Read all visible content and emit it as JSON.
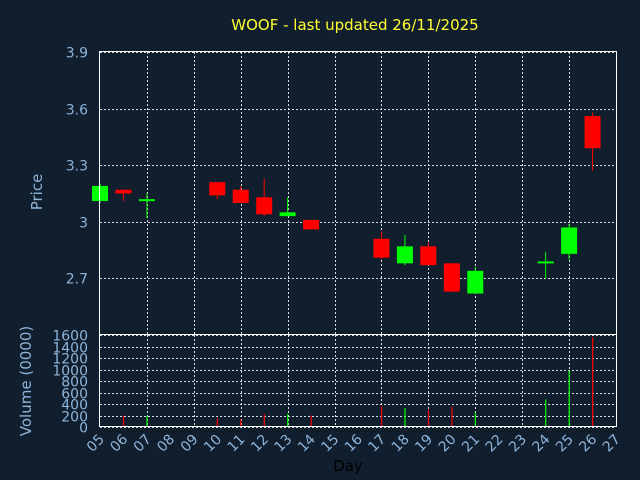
{
  "chart_data": {
    "type": "candlestick",
    "title": "WOOF - last updated 26/11/2025",
    "xlabel": "Day",
    "ylabel_price": "Price",
    "ylabel_volume": "Volume (0000)",
    "x_ticks": [
      "05",
      "06",
      "07",
      "08",
      "09",
      "10",
      "11",
      "12",
      "13",
      "14",
      "15",
      "16",
      "17",
      "18",
      "19",
      "20",
      "21",
      "22",
      "23",
      "24",
      "25",
      "26",
      "27"
    ],
    "price_ylim": [
      2.4,
      3.9
    ],
    "price_ticks": [
      "3.9",
      "3.6",
      "3.3",
      "3",
      "2.7"
    ],
    "volume_ylim": [
      0,
      1600
    ],
    "volume_ticks": [
      "1600",
      "1400",
      "1200",
      "1000",
      "800",
      "600",
      "400",
      "200",
      "0"
    ],
    "colors": {
      "up": "#00ff00",
      "down": "#ff0000",
      "background": "#111e2e",
      "grid": "#ffffff"
    },
    "candles": [
      {
        "day": "05",
        "open": 3.11,
        "high": 3.2,
        "low": 3.1,
        "close": 3.19,
        "volume": 0
      },
      {
        "day": "06",
        "open": 3.17,
        "high": 3.17,
        "low": 3.11,
        "close": 3.15,
        "volume": 200
      },
      {
        "day": "07",
        "open": 3.11,
        "high": 3.15,
        "low": 3.02,
        "close": 3.12,
        "volume": 200
      },
      {
        "day": "10",
        "open": 3.21,
        "high": 3.21,
        "low": 3.12,
        "close": 3.14,
        "volume": 150
      },
      {
        "day": "11",
        "open": 3.17,
        "high": 3.19,
        "low": 3.1,
        "close": 3.1,
        "volume": 130
      },
      {
        "day": "12",
        "open": 3.13,
        "high": 3.23,
        "low": 3.03,
        "close": 3.04,
        "volume": 220
      },
      {
        "day": "13",
        "open": 3.03,
        "high": 3.13,
        "low": 3.03,
        "close": 3.05,
        "volume": 230
      },
      {
        "day": "14",
        "open": 3.01,
        "high": 3.01,
        "low": 2.96,
        "close": 2.96,
        "volume": 200
      },
      {
        "day": "17",
        "open": 2.91,
        "high": 2.95,
        "low": 2.8,
        "close": 2.81,
        "volume": 360
      },
      {
        "day": "18",
        "open": 2.78,
        "high": 2.93,
        "low": 2.77,
        "close": 2.87,
        "volume": 330
      },
      {
        "day": "19",
        "open": 2.87,
        "high": 2.89,
        "low": 2.77,
        "close": 2.77,
        "volume": 300
      },
      {
        "day": "20",
        "open": 2.78,
        "high": 2.78,
        "low": 2.63,
        "close": 2.63,
        "volume": 350
      },
      {
        "day": "21",
        "open": 2.62,
        "high": 2.76,
        "low": 2.62,
        "close": 2.74,
        "volume": 250
      },
      {
        "day": "24",
        "open": 2.78,
        "high": 2.84,
        "low": 2.7,
        "close": 2.79,
        "volume": 480
      },
      {
        "day": "25",
        "open": 2.83,
        "high": 2.99,
        "low": 2.8,
        "close": 2.97,
        "volume": 980
      },
      {
        "day": "26",
        "open": 3.56,
        "high": 3.58,
        "low": 3.27,
        "close": 3.39,
        "volume": 1560
      }
    ]
  }
}
